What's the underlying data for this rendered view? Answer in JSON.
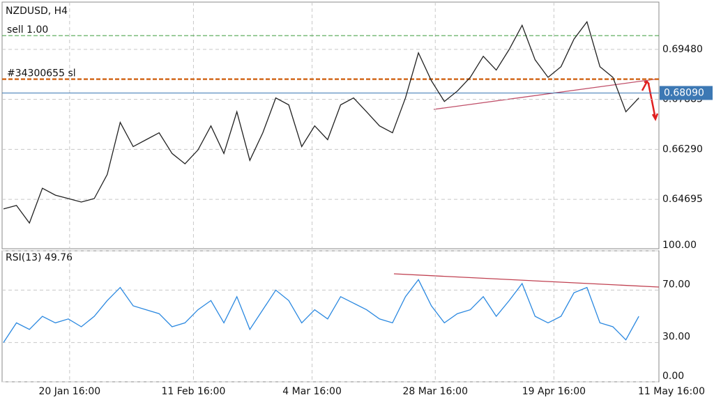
{
  "chart_data": [
    {
      "type": "line",
      "title": "NZDUSD, H4",
      "color": "#222222",
      "x": [
        0,
        2,
        4,
        6,
        8,
        10,
        12,
        14,
        16,
        18,
        20,
        22,
        24,
        26,
        28,
        30,
        32,
        34,
        36,
        38,
        40,
        42,
        44,
        46,
        48,
        50,
        52,
        54,
        56,
        58,
        60,
        62,
        64,
        66,
        68,
        70,
        72,
        74,
        76,
        78,
        80,
        82,
        84,
        86,
        88,
        90,
        92,
        94,
        96,
        98
      ],
      "values": [
        0.6439,
        0.645,
        0.6394,
        0.6505,
        0.6483,
        0.6472,
        0.6461,
        0.6472,
        0.6549,
        0.6715,
        0.6638,
        0.666,
        0.6682,
        0.6616,
        0.6583,
        0.6627,
        0.6704,
        0.6616,
        0.6749,
        0.6594,
        0.6682,
        0.6793,
        0.6771,
        0.6638,
        0.6704,
        0.666,
        0.6771,
        0.6793,
        0.6749,
        0.6704,
        0.6682,
        0.6793,
        0.6937,
        0.6848,
        0.6782,
        0.6815,
        0.6859,
        0.6926,
        0.6882,
        0.6948,
        0.7025,
        0.6915,
        0.6859,
        0.6893,
        0.6981,
        0.7036,
        0.6893,
        0.6859,
        0.6749,
        0.6793
      ],
      "xlim": [
        0,
        104
      ],
      "ylim": [
        0.6312,
        0.7099
      ],
      "yticks": [
        {
          "value": 0.6948,
          "label": "0.69480"
        },
        {
          "value": 0.67885,
          "label": "0.67885"
        },
        {
          "value": 0.6629,
          "label": "0.66290"
        },
        {
          "value": 0.64695,
          "label": "0.64695"
        }
      ],
      "grid": true,
      "levels": [
        {
          "label": "sell 1.00",
          "value": 0.6992,
          "color": "#3a9a3a"
        },
        {
          "label": "#34300655 sl",
          "value": 0.6853,
          "color": "#d2691e"
        }
      ],
      "current_price": {
        "value": 0.6809,
        "label": "0.68090",
        "color": "#3c78b4"
      }
    },
    {
      "type": "line",
      "title": "RSI(13) 49.76",
      "color": "#2a88e0",
      "x": [
        0,
        2,
        4,
        6,
        8,
        10,
        12,
        14,
        16,
        18,
        20,
        22,
        24,
        26,
        28,
        30,
        32,
        34,
        36,
        38,
        40,
        42,
        44,
        46,
        48,
        50,
        52,
        54,
        56,
        58,
        60,
        62,
        64,
        66,
        68,
        70,
        72,
        74,
        76,
        78,
        80,
        82,
        84,
        86,
        88,
        90,
        92,
        94,
        96,
        98
      ],
      "values": [
        30,
        45,
        40,
        50,
        45,
        48,
        42,
        50,
        62,
        72,
        58,
        55,
        52,
        42,
        45,
        55,
        62,
        45,
        65,
        40,
        55,
        70,
        62,
        45,
        55,
        48,
        65,
        60,
        55,
        48,
        45,
        65,
        78,
        58,
        45,
        52,
        55,
        65,
        50,
        62,
        75,
        50,
        45,
        50,
        68,
        72,
        45,
        42,
        32,
        50
      ],
      "xlim": [
        0,
        104
      ],
      "ylim": [
        0,
        100
      ],
      "yticks": [
        {
          "value": 100,
          "label": "100.00"
        },
        {
          "value": 70,
          "label": "70.00"
        },
        {
          "value": 30,
          "label": "30.00"
        },
        {
          "value": 0,
          "label": "0.00"
        }
      ],
      "xticks": [
        {
          "value": 10.2,
          "label": "20 Jan 16:00"
        },
        {
          "value": 29.3,
          "label": "11 Feb 16:00"
        },
        {
          "value": 47.6,
          "label": "4 Mar 16:00"
        },
        {
          "value": 66.6,
          "label": "28 Mar 16:00"
        },
        {
          "value": 84.9,
          "label": "19 Apr 16:00"
        },
        {
          "value": 103.2,
          "label": "11 May 16:00"
        }
      ],
      "grid": true
    }
  ]
}
